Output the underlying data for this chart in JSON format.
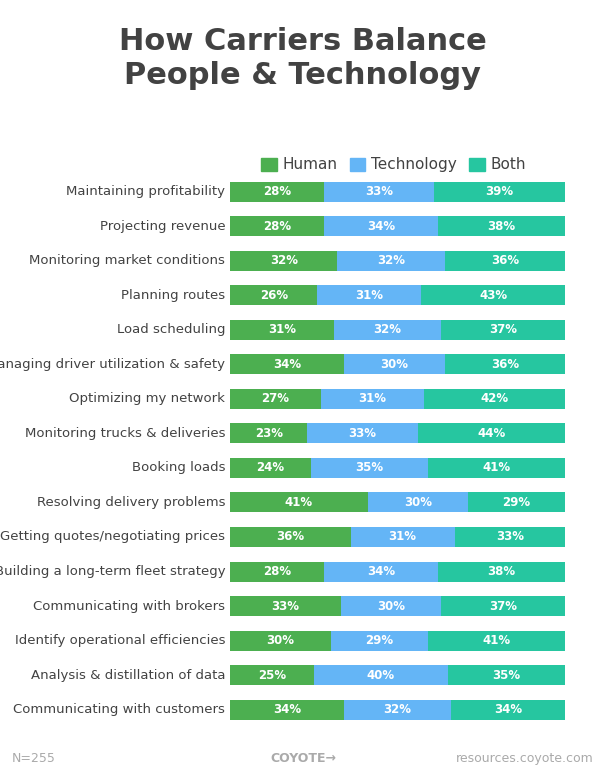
{
  "title": "How Carriers Balance\nPeople & Technology",
  "categories": [
    "Maintaining profitability",
    "Projecting revenue",
    "Monitoring market conditions",
    "Planning routes",
    "Load scheduling",
    "Managing driver utilization & safety",
    "Optimizing my network",
    "Monitoring trucks & deliveries",
    "Booking loads",
    "Resolving delivery problems",
    "Getting quotes/negotiating prices",
    "Building a long-term fleet strategy",
    "Communicating with brokers",
    "Identify operational efficiencies",
    "Analysis & distillation of data",
    "Communicating with customers"
  ],
  "human": [
    28,
    28,
    32,
    26,
    31,
    34,
    27,
    23,
    24,
    41,
    36,
    28,
    33,
    30,
    25,
    34
  ],
  "technology": [
    33,
    34,
    32,
    31,
    32,
    30,
    31,
    33,
    35,
    30,
    31,
    34,
    30,
    29,
    40,
    32
  ],
  "both": [
    39,
    38,
    36,
    43,
    37,
    36,
    42,
    44,
    41,
    29,
    33,
    38,
    37,
    41,
    35,
    34
  ],
  "human_color": "#4caf50",
  "technology_color": "#64b5f6",
  "both_color": "#26c6a0",
  "title_color": "#424242",
  "label_color": "#424242",
  "value_color": "#ffffff",
  "background_color": "#ffffff",
  "legend_labels": [
    "Human",
    "Technology",
    "Both"
  ],
  "footnote": "N=255",
  "footer_center": "COYOTE→",
  "footer_right": "resources.coyote.com",
  "bar_height": 0.58,
  "title_fontsize": 22,
  "legend_fontsize": 11,
  "label_fontsize": 9.5,
  "value_fontsize": 8.5
}
